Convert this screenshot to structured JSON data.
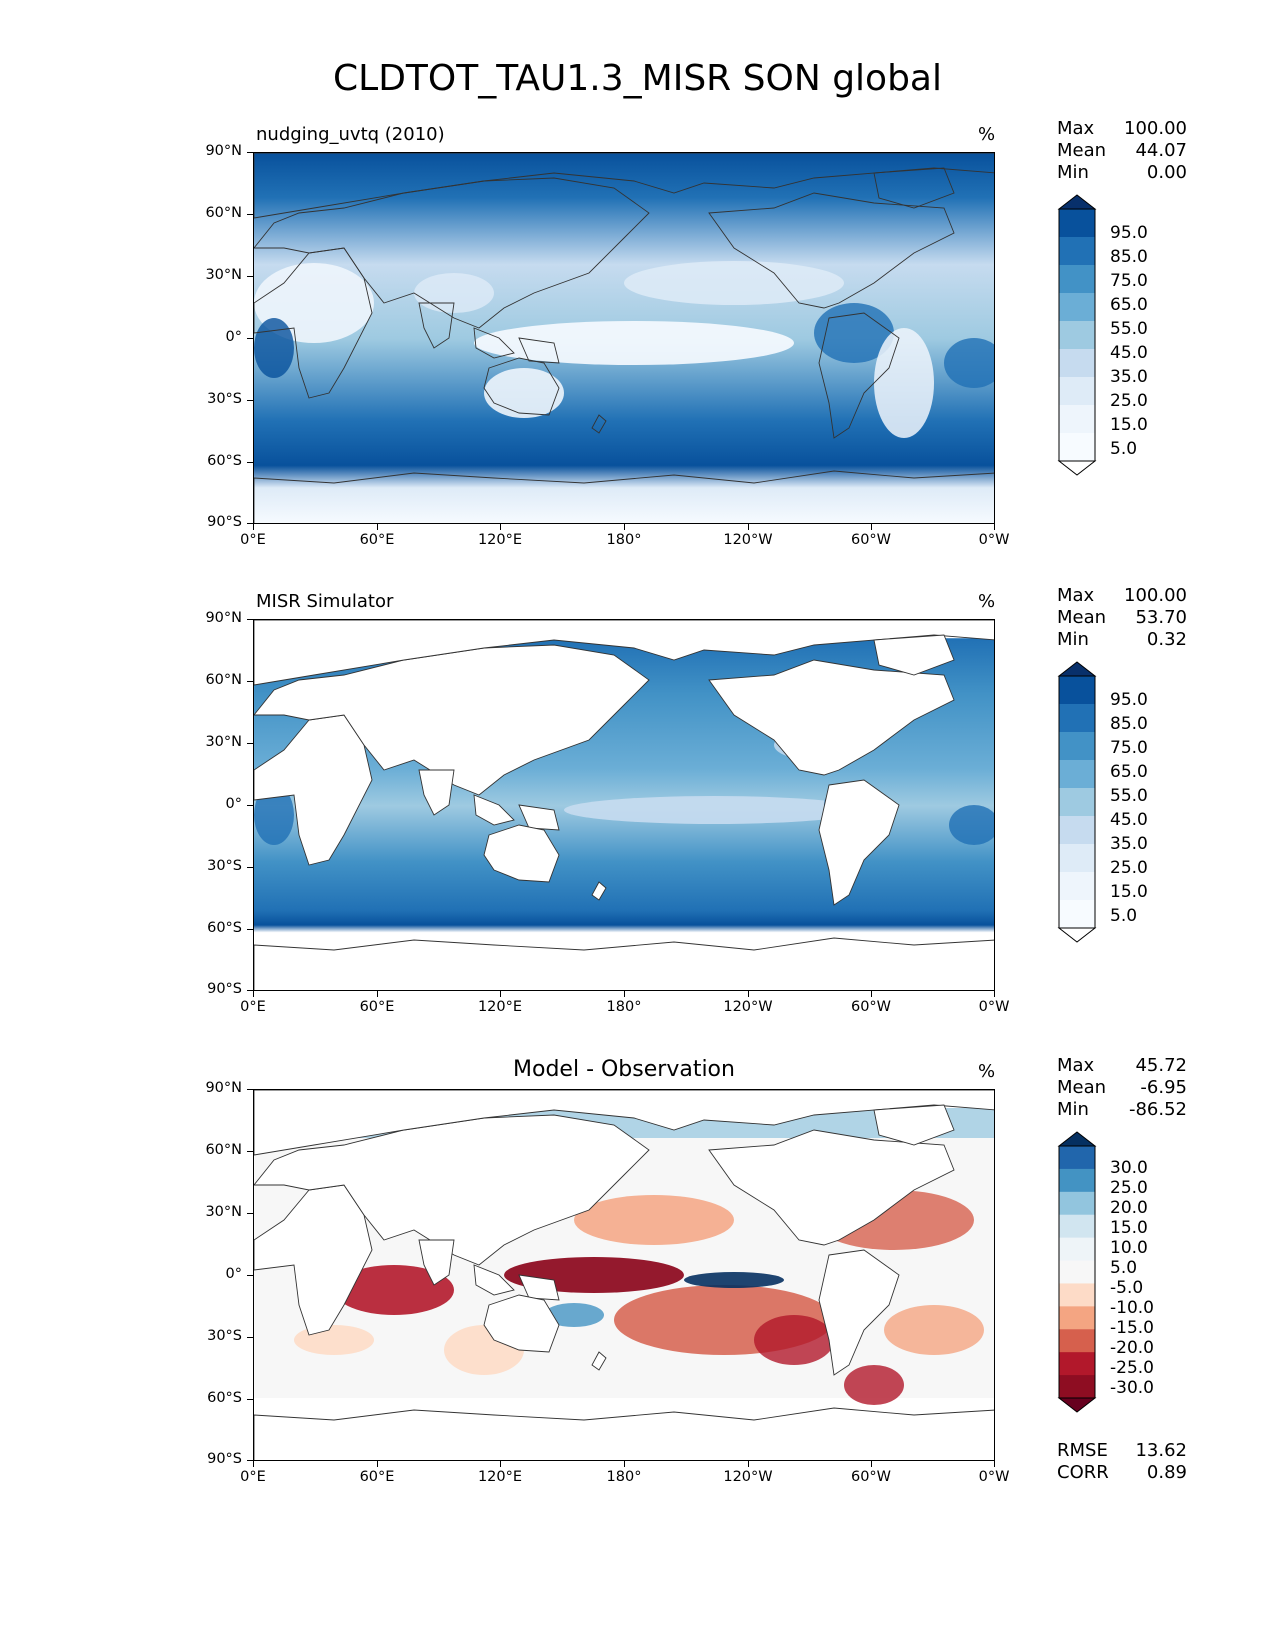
{
  "title": "CLDTOT_TAU1.3_MISR SON global",
  "axes": {
    "lat_labels": [
      "90°N",
      "60°N",
      "30°N",
      "0°",
      "30°S",
      "60°S",
      "90°S"
    ],
    "lon_labels": [
      "0°E",
      "60°E",
      "120°E",
      "180°",
      "120°W",
      "60°W",
      "0°W"
    ]
  },
  "panels": [
    {
      "id": "test",
      "title": "nudging_uvtq (2010)",
      "units": "%",
      "stats": [
        {
          "label": "Max",
          "value": "100.00"
        },
        {
          "label": "Mean",
          "value": "44.07"
        },
        {
          "label": "Min",
          "value": "0.00"
        }
      ],
      "colorbar": {
        "labels": [
          "95.0",
          "85.0",
          "75.0",
          "65.0",
          "55.0",
          "45.0",
          "35.0",
          "25.0",
          "15.0",
          "5.0"
        ],
        "colors": [
          "#08306b",
          "#08519c",
          "#2171b5",
          "#4292c6",
          "#6baed6",
          "#9ecae1",
          "#c6dbef",
          "#deebf7",
          "#eef5fc",
          "#f7fbff",
          "#ffffff"
        ]
      }
    },
    {
      "id": "reference",
      "title": "MISR Simulator",
      "units": "%",
      "stats": [
        {
          "label": "Max",
          "value": "100.00"
        },
        {
          "label": "Mean",
          "value": "53.70"
        },
        {
          "label": "Min",
          "value": "0.32"
        }
      ],
      "colorbar": {
        "labels": [
          "95.0",
          "85.0",
          "75.0",
          "65.0",
          "55.0",
          "45.0",
          "35.0",
          "25.0",
          "15.0",
          "5.0"
        ],
        "colors": [
          "#08306b",
          "#08519c",
          "#2171b5",
          "#4292c6",
          "#6baed6",
          "#9ecae1",
          "#c6dbef",
          "#deebf7",
          "#eef5fc",
          "#f7fbff",
          "#ffffff"
        ]
      }
    },
    {
      "id": "difference",
      "center_title": "Model - Observation",
      "units": "%",
      "stats": [
        {
          "label": "Max",
          "value": "45.72"
        },
        {
          "label": "Mean",
          "value": "-6.95"
        },
        {
          "label": "Min",
          "value": "-86.52"
        }
      ],
      "metrics": [
        {
          "label": "RMSE",
          "value": "13.62"
        },
        {
          "label": "CORR",
          "value": "0.89"
        }
      ],
      "colorbar": {
        "labels": [
          "30.0",
          "25.0",
          "20.0",
          "15.0",
          "10.0",
          "5.0",
          "-5.0",
          "-10.0",
          "-15.0",
          "-20.0",
          "-25.0",
          "-30.0"
        ],
        "colors": [
          "#053061",
          "#2166ac",
          "#4393c3",
          "#92c5de",
          "#d1e5f0",
          "#eef4f8",
          "#f7f7f7",
          "#fddbc7",
          "#f4a582",
          "#d6604d",
          "#b2182b",
          "#8e0d22",
          "#67001f"
        ]
      }
    }
  ]
}
